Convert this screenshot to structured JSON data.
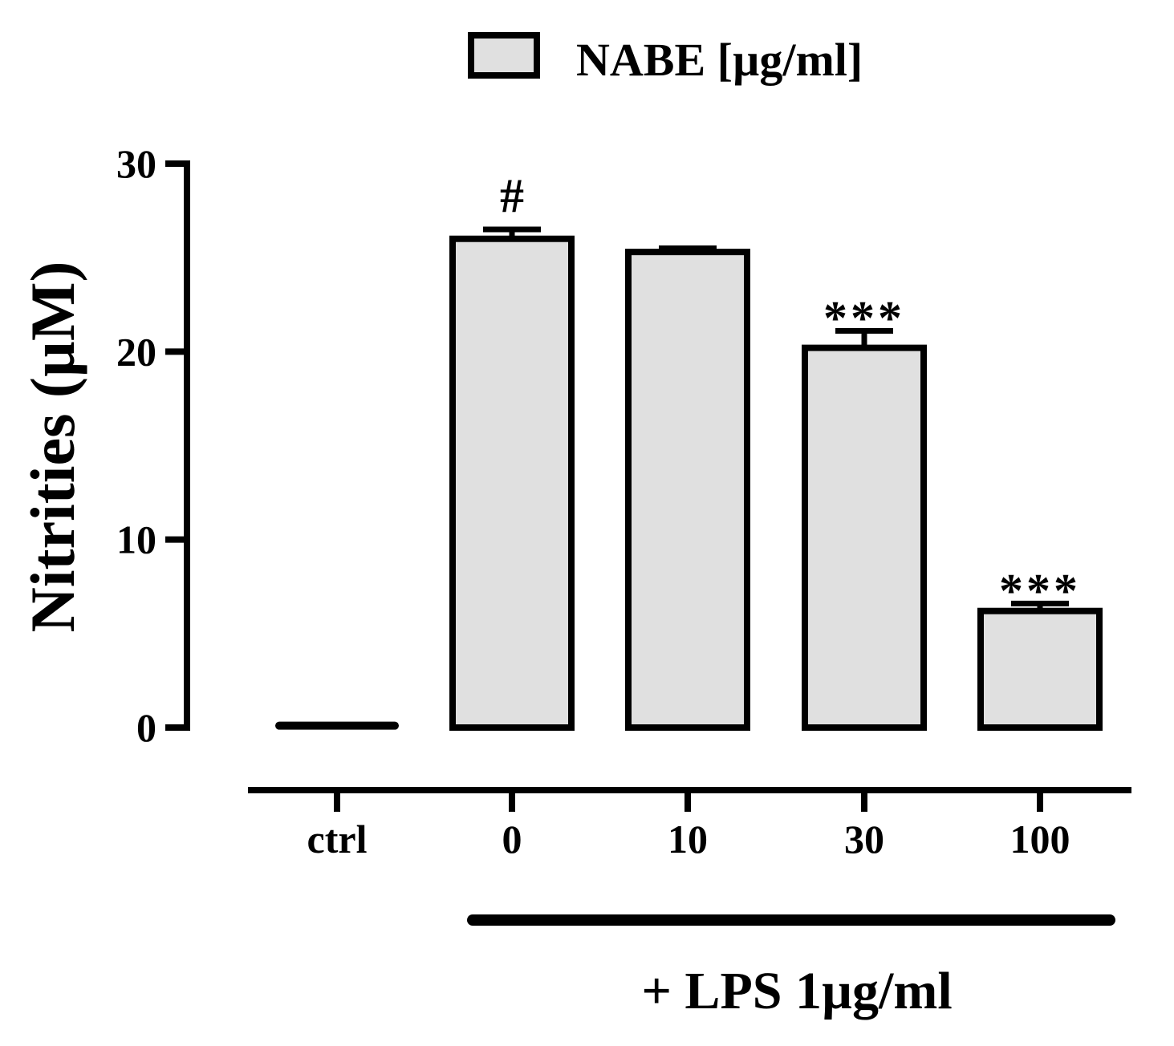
{
  "chart_data": {
    "type": "bar",
    "title": "",
    "xlabel": "",
    "ylabel": "Nitrities (µM)",
    "ylim": [
      0,
      30
    ],
    "yticks": [
      "0",
      "10",
      "20",
      "30"
    ],
    "categories": [
      "ctrl",
      "0",
      "10",
      "30",
      "100"
    ],
    "series": [
      {
        "name": "NABE [µg/ml]",
        "values": [
          0.1,
          26,
          25.3,
          20.2,
          6.2
        ],
        "errors": [
          0,
          0.5,
          0.2,
          0.9,
          0.4
        ]
      }
    ],
    "annotations": [
      "",
      "#",
      "",
      "***",
      "***"
    ],
    "group_label": "+ LPS 1µg/ml",
    "legend": "top",
    "grid": false,
    "bar_color": "#e0e0e0"
  }
}
